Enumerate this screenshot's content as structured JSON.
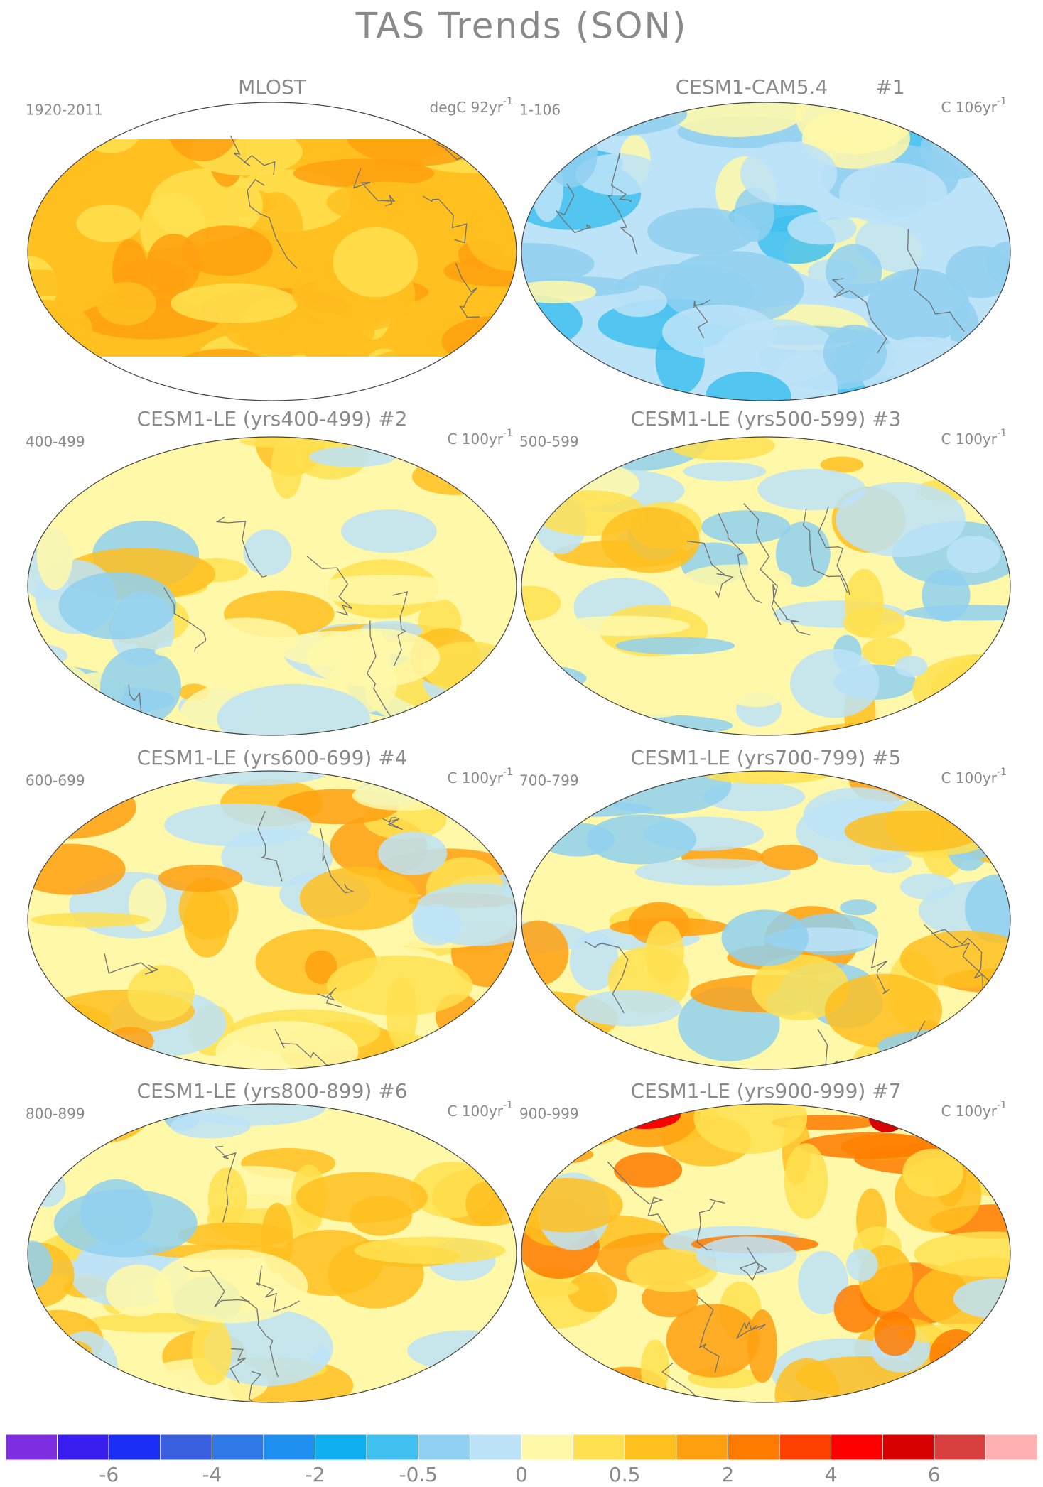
{
  "title": "TAS Trends (SON)",
  "panels": [
    {
      "title": "MLOST",
      "period": "1920-2011",
      "units": "degC 92yr",
      "units_exponent": "-1"
    },
    {
      "title": "CESM1-CAM5.4",
      "number": "#1",
      "period": "1-106",
      "units": "C 106yr",
      "units_exponent": "-1"
    },
    {
      "title": "CESM1-LE (yrs400-499) #2",
      "period": "400-499",
      "units": "C 100yr",
      "units_exponent": "-1"
    },
    {
      "title": "CESM1-LE (yrs500-599) #3",
      "period": "500-599",
      "units": "C 100yr",
      "units_exponent": "-1"
    },
    {
      "title": "CESM1-LE (yrs600-699) #4",
      "period": "600-699",
      "units": "C 100yr",
      "units_exponent": "-1"
    },
    {
      "title": "CESM1-LE (yrs700-799) #5",
      "period": "700-799",
      "units": "C 100yr",
      "units_exponent": "-1"
    },
    {
      "title": "CESM1-LE (yrs800-899) #6",
      "period": "800-899",
      "units": "C 100yr",
      "units_exponent": "-1"
    },
    {
      "title": "CESM1-LE (yrs900-999) #7",
      "period": "900-999",
      "units": "C 100yr",
      "units_exponent": "-1"
    }
  ],
  "colorbar": {
    "colors": [
      "#7f2de0",
      "#3a1ef0",
      "#1a2ef5",
      "#3a60e0",
      "#2f7ae8",
      "#2090f0",
      "#10b0f0",
      "#40c0f0",
      "#90d0f0",
      "#bde3f8",
      "#fff8a8",
      "#ffe050",
      "#ffc020",
      "#ffa010",
      "#ff7b00",
      "#ff4000",
      "#ff0000",
      "#d80000",
      "#d84040",
      "#ffb0b0"
    ],
    "labels": [
      -6,
      -4,
      -2,
      -0.5,
      0,
      0.5,
      2,
      4,
      6
    ]
  }
}
